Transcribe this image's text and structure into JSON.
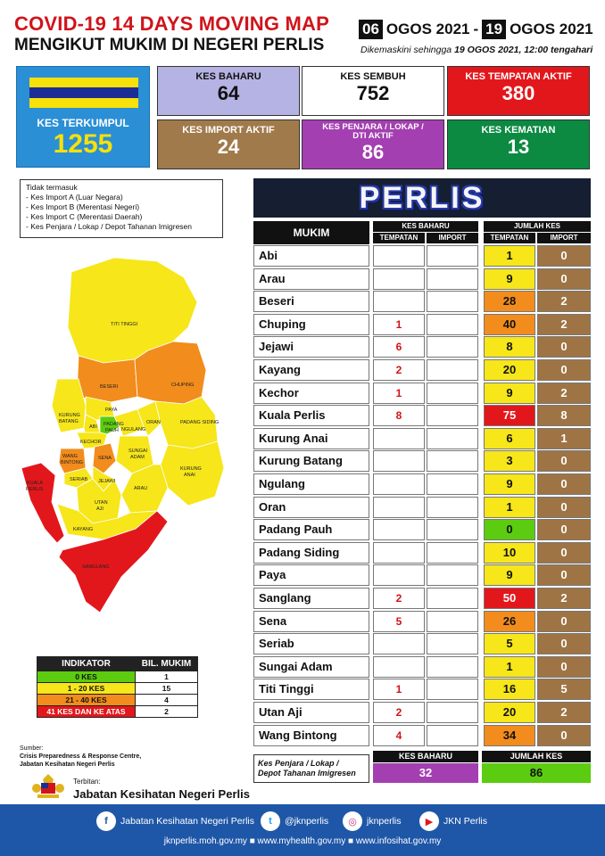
{
  "header": {
    "title": "COVID-19 14 DAYS MOVING MAP",
    "subtitle": "MENGIKUT MUKIM DI NEGERI PERLIS",
    "date_start_day": "06",
    "date_start_rest": "OGOS 2021",
    "date_sep": "-",
    "date_end_day": "19",
    "date_end_rest": "OGOS 2021",
    "updated_prefix": "Dikemaskini sehingga",
    "updated_value": "19 OGOS  2021, 12:00 tengahari"
  },
  "stats": {
    "terkumpul_label": "KES TERKUMPUL",
    "terkumpul_value": "1255",
    "baharu_label": "KES BAHARU",
    "baharu_value": "64",
    "sembuh_label": "KES SEMBUH",
    "sembuh_value": "752",
    "tempatan_label": "KES TEMPATAN AKTIF",
    "tempatan_value": "380",
    "import_label": "KES IMPORT AKTIF",
    "import_value": "24",
    "penjara_label_1": "KES PENJARA / LOKAP /",
    "penjara_label_2": "DTI AKTIF",
    "penjara_value": "86",
    "kematian_label": "KES KEMATIAN",
    "kematian_value": "13"
  },
  "note": {
    "title": "Tidak termasuk",
    "items": [
      "- Kes Import A (Luar Negara)",
      "- Kes Import B (Merentasi Negeri)",
      "- Kes Import C (Merentasi Daerah)",
      "- Kes Penjara / Lokap / Depot Tahanan Imigresen"
    ]
  },
  "map_labels": {
    "titi_tinggi": "TITI TINGGI",
    "beseri": "BESERI",
    "chuping": "CHUPING",
    "paya": "PAYA",
    "kurung_batang_1": "KURUNG",
    "kurung_batang_2": "BATANG",
    "abi": "ABI",
    "padang_pauh_1": "PADANG",
    "padang_pauh_2": "PAUH",
    "ngulang": "NGULANG",
    "oran": "ORAN",
    "padang_siding": "PADANG SIDING",
    "kechor": "KECHOR",
    "wang_bintong_1": "WANG",
    "wang_bintong_2": "BINTONG",
    "sena": "SENA",
    "sungai_adam_1": "SUNGAI",
    "sungai_adam_2": "ADAM",
    "kurung_anai_1": "KURUNG",
    "kurung_anai_2": "ANAI",
    "kuala_perlis_1": "KUALA",
    "kuala_perlis_2": "PERLIS",
    "seriab": "SERIAB",
    "jejawi": "JEJAWI",
    "arau": "ARAU",
    "utan_aji_1": "UTAN",
    "utan_aji_2": "AJI",
    "kayang": "KAYANG",
    "sanglang": "SANGLANG"
  },
  "indicator": {
    "header_1": "INDIKATOR",
    "header_2": "BIL. MUKIM",
    "rows": [
      {
        "label": "0 KES",
        "count": "1"
      },
      {
        "label": "1 - 20 KES",
        "count": "15"
      },
      {
        "label": "21 - 40 KES",
        "count": "4"
      },
      {
        "label": "41 KES DAN KE ATAS",
        "count": "2"
      }
    ]
  },
  "source": {
    "label": "Sumber:",
    "line1": "Crisis Preparedness & Response Centre,",
    "line2": "Jabatan Kesihatan Negeri Perlis",
    "terbitan": "Terbitan:",
    "org": "Jabatan Kesihatan Negeri Perlis"
  },
  "table": {
    "state": "PERLIS",
    "col_mukim": "MUKIM",
    "col_kes_baharu": "KES BAHARU",
    "col_jumlah_kes": "JUMLAH KES",
    "sub_tempatan": "TEMPATAN",
    "sub_import": "IMPORT",
    "rows": [
      {
        "mukim": "Abi",
        "baharu_tempatan": "",
        "baharu_import": "",
        "jumlah_tempatan": "1",
        "jumlah_import": "0",
        "color": "#f6e61a"
      },
      {
        "mukim": "Arau",
        "baharu_tempatan": "",
        "baharu_import": "",
        "jumlah_tempatan": "9",
        "jumlah_import": "0",
        "color": "#f6e61a"
      },
      {
        "mukim": "Beseri",
        "baharu_tempatan": "",
        "baharu_import": "",
        "jumlah_tempatan": "28",
        "jumlah_import": "2",
        "color": "#f28c1c"
      },
      {
        "mukim": "Chuping",
        "baharu_tempatan": "1",
        "baharu_import": "",
        "jumlah_tempatan": "40",
        "jumlah_import": "2",
        "color": "#f28c1c"
      },
      {
        "mukim": "Jejawi",
        "baharu_tempatan": "6",
        "baharu_import": "",
        "jumlah_tempatan": "8",
        "jumlah_import": "0",
        "color": "#f6e61a"
      },
      {
        "mukim": "Kayang",
        "baharu_tempatan": "2",
        "baharu_import": "",
        "jumlah_tempatan": "20",
        "jumlah_import": "0",
        "color": "#f6e61a"
      },
      {
        "mukim": "Kechor",
        "baharu_tempatan": "1",
        "baharu_import": "",
        "jumlah_tempatan": "9",
        "jumlah_import": "2",
        "color": "#f6e61a"
      },
      {
        "mukim": "Kuala Perlis",
        "baharu_tempatan": "8",
        "baharu_import": "",
        "jumlah_tempatan": "75",
        "jumlah_import": "8",
        "color": "#e2171c"
      },
      {
        "mukim": "Kurung Anai",
        "baharu_tempatan": "",
        "baharu_import": "",
        "jumlah_tempatan": "6",
        "jumlah_import": "1",
        "color": "#f6e61a"
      },
      {
        "mukim": "Kurung Batang",
        "baharu_tempatan": "",
        "baharu_import": "",
        "jumlah_tempatan": "3",
        "jumlah_import": "0",
        "color": "#f6e61a"
      },
      {
        "mukim": "Ngulang",
        "baharu_tempatan": "",
        "baharu_import": "",
        "jumlah_tempatan": "9",
        "jumlah_import": "0",
        "color": "#f6e61a"
      },
      {
        "mukim": "Oran",
        "baharu_tempatan": "",
        "baharu_import": "",
        "jumlah_tempatan": "1",
        "jumlah_import": "0",
        "color": "#f6e61a"
      },
      {
        "mukim": "Padang Pauh",
        "baharu_tempatan": "",
        "baharu_import": "",
        "jumlah_tempatan": "0",
        "jumlah_import": "0",
        "color": "#5ccc10"
      },
      {
        "mukim": "Padang Siding",
        "baharu_tempatan": "",
        "baharu_import": "",
        "jumlah_tempatan": "10",
        "jumlah_import": "0",
        "color": "#f6e61a"
      },
      {
        "mukim": "Paya",
        "baharu_tempatan": "",
        "baharu_import": "",
        "jumlah_tempatan": "9",
        "jumlah_import": "0",
        "color": "#f6e61a"
      },
      {
        "mukim": "Sanglang",
        "baharu_tempatan": "2",
        "baharu_import": "",
        "jumlah_tempatan": "50",
        "jumlah_import": "2",
        "color": "#e2171c"
      },
      {
        "mukim": "Sena",
        "baharu_tempatan": "5",
        "baharu_import": "",
        "jumlah_tempatan": "26",
        "jumlah_import": "0",
        "color": "#f28c1c"
      },
      {
        "mukim": "Seriab",
        "baharu_tempatan": "",
        "baharu_import": "",
        "jumlah_tempatan": "5",
        "jumlah_import": "0",
        "color": "#f6e61a"
      },
      {
        "mukim": "Sungai Adam",
        "baharu_tempatan": "",
        "baharu_import": "",
        "jumlah_tempatan": "1",
        "jumlah_import": "0",
        "color": "#f6e61a"
      },
      {
        "mukim": "Titi Tinggi",
        "baharu_tempatan": "1",
        "baharu_import": "",
        "jumlah_tempatan": "16",
        "jumlah_import": "5",
        "color": "#f6e61a"
      },
      {
        "mukim": "Utan Aji",
        "baharu_tempatan": "2",
        "baharu_import": "",
        "jumlah_tempatan": "20",
        "jumlah_import": "2",
        "color": "#f6e61a"
      },
      {
        "mukim": "Wang Bintong",
        "baharu_tempatan": "4",
        "baharu_import": "",
        "jumlah_tempatan": "34",
        "jumlah_import": "0",
        "color": "#f28c1c"
      }
    ],
    "penjara_label_1": "Kes Penjara / Lokap /",
    "penjara_label_2": "Depot Tahanan Imigresen",
    "penjara_baharu_label": "KES BAHARU",
    "penjara_baharu_value": "32",
    "penjara_jumlah_label": "JUMLAH KES",
    "penjara_jumlah_value": "86"
  },
  "footer": {
    "facebook": "Jabatan Kesihatan Negeri Perlis",
    "twitter": "@jknperlis",
    "instagram": "jknperlis",
    "youtube": "JKN Perlis",
    "url1": "jknperlis.moh.gov.my",
    "url2": "www.myhealth.gov.my",
    "url3": "www.infosihat.gov.my"
  }
}
